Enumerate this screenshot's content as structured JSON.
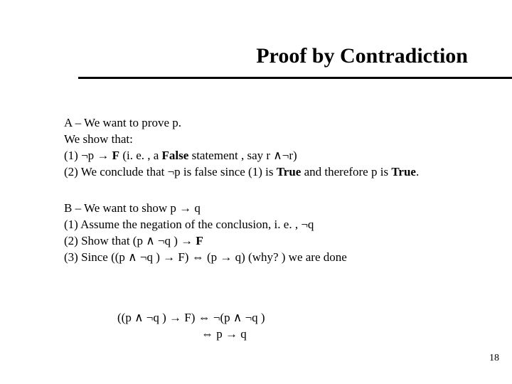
{
  "title": "Proof by Contradiction",
  "sectionA": {
    "heading": "A – We want to prove p.",
    "line1": "We show  that:",
    "line2_prefix": "(1) ¬p → ",
    "line2_F": "F",
    "line2_suffix": "     (i. e. ,   a ",
    "line2_False": "False",
    "line2_tail": "  statement , say r ∧¬r)",
    "line3_prefix": "(2) We conclude that ¬p is false since (1) is ",
    "line3_True1": "True",
    "line3_mid": " and therefore p is ",
    "line3_True2": "True",
    "line3_end": "."
  },
  "sectionB": {
    "heading": "B – We want to show p → q",
    "line1": "(1) Assume the negation of the conclusion, i. e. ,   ¬q",
    "line2_prefix": "(2) Show that (p ∧ ¬q ) → ",
    "line2_F": "F",
    "line3": "(3) Since ((p ∧ ¬q ) → F) ⇔ (p → q)    (why? )  we are done"
  },
  "footer": {
    "line1": "((p ∧ ¬q ) → F) ⇔ ¬(p ∧ ¬q )",
    "line2": "⇔  p → q"
  },
  "pageNumber": "18",
  "colors": {
    "background": "#ffffff",
    "text": "#000000"
  }
}
